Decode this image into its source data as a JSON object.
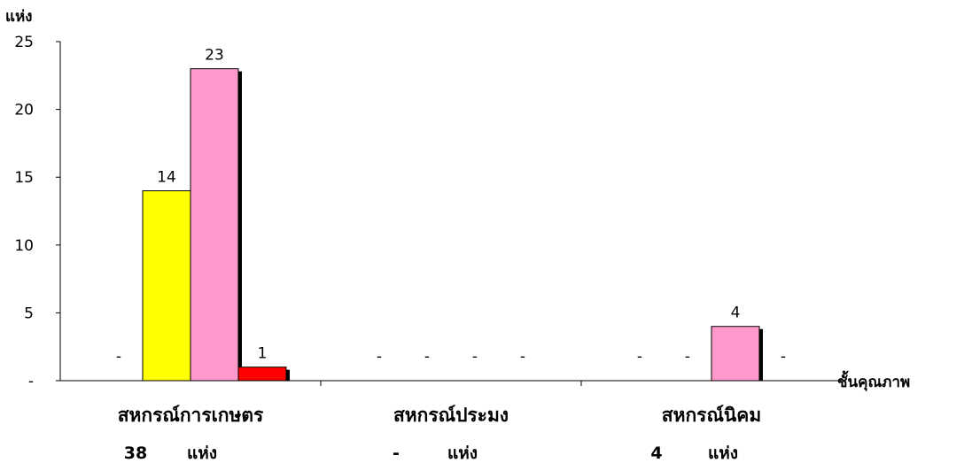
{
  "chart_data": {
    "type": "bar",
    "ylabel": "แห่ง",
    "xlabel": "ชั้นคุณภาพ",
    "ylim": [
      0,
      25
    ],
    "yticks": [
      "-",
      "5",
      "10",
      "15",
      "20",
      "25"
    ],
    "grid": false,
    "categories": [
      {
        "name": "สหกรณ์การเกษตร",
        "count_value": "38",
        "count_unit": "แห่ง"
      },
      {
        "name": "สหกรณ์ประมง",
        "count_value": "-",
        "count_unit": "แห่ง"
      },
      {
        "name": "สหกรณ์นิคม",
        "count_value": "4",
        "count_unit": "แห่ง"
      }
    ],
    "series": [
      {
        "color": "#ffffff",
        "values": [
          0,
          0,
          0
        ],
        "labels": [
          "-",
          "-",
          "-"
        ]
      },
      {
        "color": "#ffff00",
        "values": [
          14,
          0,
          0
        ],
        "labels": [
          "14",
          "-",
          "-"
        ]
      },
      {
        "color": "#ff99cc",
        "values": [
          23,
          0,
          4
        ],
        "labels": [
          "23",
          "-",
          "4"
        ]
      },
      {
        "color": "#ff0000",
        "values": [
          1,
          0,
          0
        ],
        "labels": [
          "1",
          "-",
          "-"
        ]
      }
    ]
  }
}
